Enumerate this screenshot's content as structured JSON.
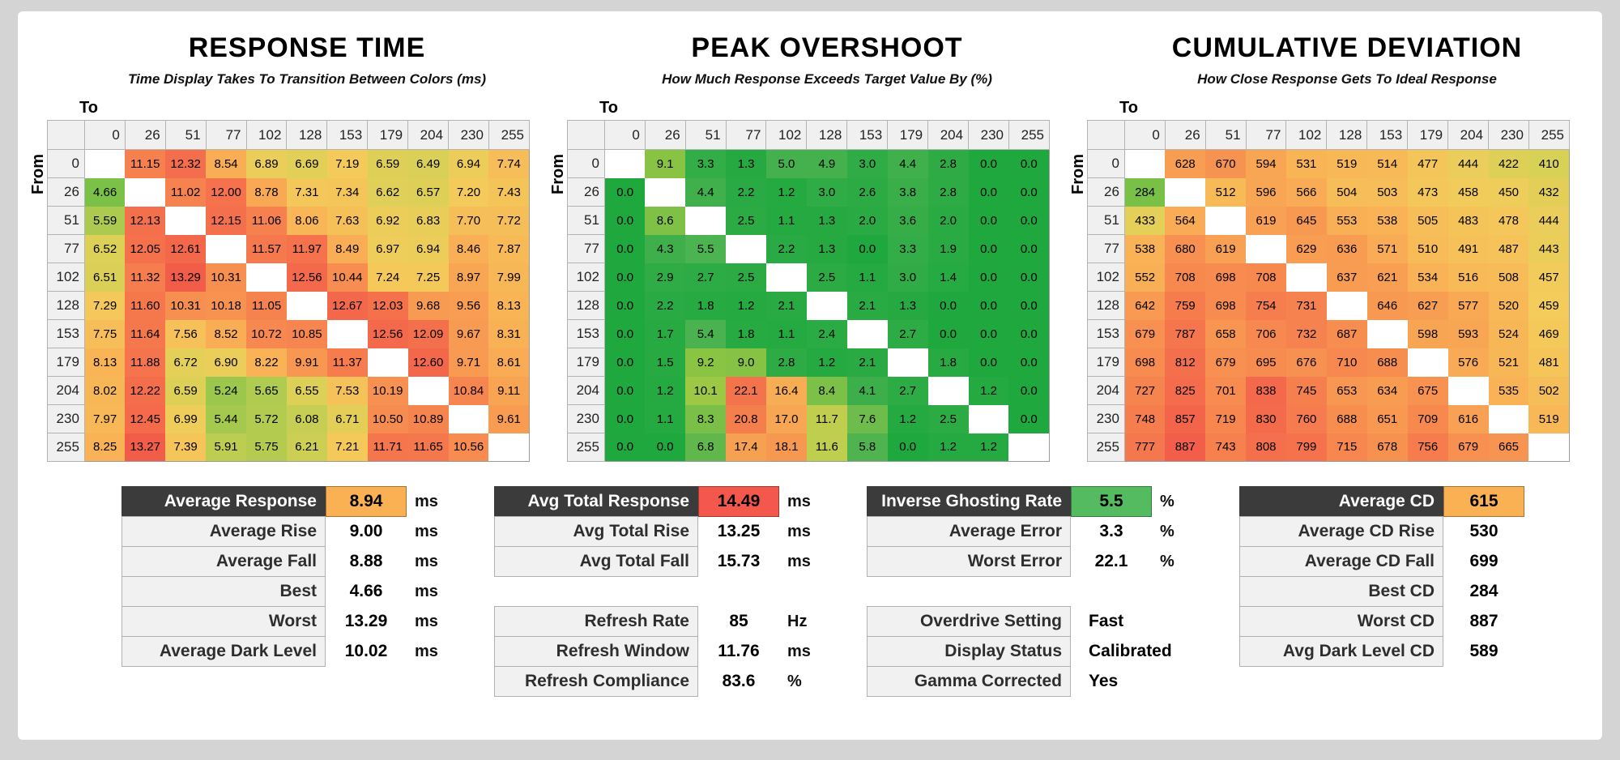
{
  "page": {
    "background": "#d4d4d4",
    "panel_background": "#ffffff"
  },
  "colors": {
    "header_dark": "#3b3b3b",
    "value_orange": "#f9b153",
    "value_red": "#f4574c",
    "value_green": "#55bb60",
    "matrix_header_bg": "#f0f0f0"
  },
  "chart_data": [
    {
      "type": "heatmap",
      "id": "response-time",
      "title": "RESPONSE TIME",
      "subtitle": "Time Display Takes To Transition Between Colors (ms)",
      "x_label": "To",
      "y_label": "From",
      "unit": "ms",
      "categories": [
        0,
        26,
        51,
        77,
        102,
        128,
        153,
        179,
        204,
        230,
        255
      ],
      "decimals": 2,
      "values": [
        [
          null,
          11.15,
          12.32,
          8.54,
          6.89,
          6.69,
          7.19,
          6.59,
          6.49,
          6.94,
          7.74
        ],
        [
          4.66,
          null,
          11.02,
          12.0,
          8.78,
          7.31,
          7.34,
          6.62,
          6.57,
          7.2,
          7.43
        ],
        [
          5.59,
          12.13,
          null,
          12.15,
          11.06,
          8.06,
          7.63,
          6.92,
          6.83,
          7.7,
          7.72
        ],
        [
          6.52,
          12.05,
          12.61,
          null,
          11.57,
          11.97,
          8.49,
          6.97,
          6.94,
          8.46,
          7.87
        ],
        [
          6.51,
          11.32,
          13.29,
          10.31,
          null,
          12.56,
          10.44,
          7.24,
          7.25,
          8.97,
          7.99
        ],
        [
          7.29,
          11.6,
          10.31,
          10.18,
          11.05,
          null,
          12.67,
          12.03,
          9.68,
          9.56,
          8.13
        ],
        [
          7.75,
          11.64,
          7.56,
          8.52,
          10.72,
          10.85,
          null,
          12.56,
          12.09,
          9.67,
          8.31
        ],
        [
          8.13,
          11.88,
          6.72,
          6.9,
          8.22,
          9.91,
          11.37,
          null,
          12.6,
          9.71,
          8.61
        ],
        [
          8.02,
          12.22,
          6.59,
          5.24,
          5.65,
          6.55,
          7.53,
          10.19,
          null,
          10.84,
          9.11
        ],
        [
          7.97,
          12.45,
          6.99,
          5.44,
          5.72,
          6.08,
          6.71,
          10.5,
          10.89,
          null,
          9.61
        ],
        [
          8.25,
          13.27,
          7.39,
          5.91,
          5.75,
          6.21,
          7.21,
          11.71,
          11.65,
          10.56,
          null
        ]
      ],
      "colormap": {
        "min": 4.4,
        "max": 13.4,
        "stops": [
          [
            0,
            "#6fbe45"
          ],
          [
            0.12,
            "#a6c94e"
          ],
          [
            0.22,
            "#d6d156"
          ],
          [
            0.3,
            "#f3cc5b"
          ],
          [
            0.42,
            "#f9b356"
          ],
          [
            0.58,
            "#f89c52"
          ],
          [
            0.76,
            "#f67e4e"
          ],
          [
            1,
            "#f25b49"
          ]
        ]
      }
    },
    {
      "type": "heatmap",
      "id": "peak-overshoot",
      "title": "PEAK OVERSHOOT",
      "subtitle": "How Much Response Exceeds Target Value By (%)",
      "x_label": "To",
      "y_label": "From",
      "unit": "%",
      "categories": [
        0,
        26,
        51,
        77,
        102,
        128,
        153,
        179,
        204,
        230,
        255
      ],
      "decimals": 1,
      "values": [
        [
          null,
          9.1,
          3.3,
          1.3,
          5.0,
          4.9,
          3.0,
          4.4,
          2.8,
          0.0,
          0.0
        ],
        [
          0.0,
          null,
          4.4,
          2.2,
          1.2,
          3.0,
          2.6,
          3.8,
          2.8,
          0.0,
          0.0
        ],
        [
          0.0,
          8.6,
          null,
          2.5,
          1.1,
          1.3,
          2.0,
          3.6,
          2.0,
          0.0,
          0.0
        ],
        [
          0.0,
          4.3,
          5.5,
          null,
          2.2,
          1.3,
          0.0,
          3.3,
          1.9,
          0.0,
          0.0
        ],
        [
          0.0,
          2.9,
          2.7,
          2.5,
          null,
          2.5,
          1.1,
          3.0,
          1.4,
          0.0,
          0.0
        ],
        [
          0.0,
          2.2,
          1.8,
          1.2,
          2.1,
          null,
          2.1,
          1.3,
          0.0,
          0.0,
          0.0
        ],
        [
          0.0,
          1.7,
          5.4,
          1.8,
          1.1,
          2.4,
          null,
          2.7,
          0.0,
          0.0,
          0.0
        ],
        [
          0.0,
          1.5,
          9.2,
          9.0,
          2.8,
          1.2,
          2.1,
          null,
          1.8,
          0.0,
          0.0
        ],
        [
          0.0,
          1.2,
          10.1,
          22.1,
          16.4,
          8.4,
          4.1,
          2.7,
          null,
          1.2,
          0.0
        ],
        [
          0.0,
          1.1,
          8.3,
          20.8,
          17.0,
          11.7,
          7.6,
          1.2,
          2.5,
          null,
          0.0
        ],
        [
          0.0,
          0.0,
          6.8,
          17.4,
          18.1,
          11.6,
          5.8,
          0.0,
          1.2,
          1.2,
          null
        ]
      ],
      "colormap": {
        "min": 0,
        "max": 22.5,
        "stops": [
          [
            0,
            "#1fa83e"
          ],
          [
            0.12,
            "#2dab45"
          ],
          [
            0.25,
            "#4cb350"
          ],
          [
            0.35,
            "#73bd4a"
          ],
          [
            0.42,
            "#8ec542"
          ],
          [
            0.52,
            "#c0ce50"
          ],
          [
            0.62,
            "#e8d457"
          ],
          [
            0.72,
            "#f7b055"
          ],
          [
            0.82,
            "#f6934f"
          ],
          [
            1,
            "#f2704c"
          ]
        ]
      }
    },
    {
      "type": "heatmap",
      "id": "cumulative-deviation",
      "title": "CUMULATIVE DEVIATION",
      "subtitle": "How Close Response Gets To Ideal Response",
      "x_label": "To",
      "y_label": "From",
      "unit": "",
      "categories": [
        0,
        26,
        51,
        77,
        102,
        128,
        153,
        179,
        204,
        230,
        255
      ],
      "decimals": 0,
      "values": [
        [
          null,
          628,
          670,
          594,
          531,
          519,
          514,
          477,
          444,
          422,
          410
        ],
        [
          284,
          null,
          512,
          596,
          566,
          504,
          503,
          473,
          458,
          450,
          432
        ],
        [
          433,
          564,
          null,
          619,
          645,
          553,
          538,
          505,
          483,
          478,
          444
        ],
        [
          538,
          680,
          619,
          null,
          629,
          636,
          571,
          510,
          491,
          487,
          443
        ],
        [
          552,
          708,
          698,
          708,
          null,
          637,
          621,
          534,
          516,
          508,
          457
        ],
        [
          642,
          759,
          698,
          754,
          731,
          null,
          646,
          627,
          577,
          520,
          459
        ],
        [
          679,
          787,
          658,
          706,
          732,
          687,
          null,
          598,
          593,
          524,
          469
        ],
        [
          698,
          812,
          679,
          695,
          676,
          710,
          688,
          null,
          576,
          521,
          481
        ],
        [
          727,
          825,
          701,
          838,
          745,
          653,
          634,
          675,
          null,
          535,
          502
        ],
        [
          748,
          857,
          719,
          830,
          760,
          688,
          651,
          709,
          616,
          null,
          519
        ],
        [
          777,
          887,
          743,
          808,
          799,
          715,
          678,
          756,
          679,
          665,
          null
        ]
      ],
      "colormap": {
        "min": 270,
        "max": 900,
        "stops": [
          [
            0,
            "#6fbe45"
          ],
          [
            0.12,
            "#a6c94e"
          ],
          [
            0.22,
            "#d6d156"
          ],
          [
            0.3,
            "#f3cc5b"
          ],
          [
            0.42,
            "#f9b356"
          ],
          [
            0.58,
            "#f89c52"
          ],
          [
            0.76,
            "#f67e4e"
          ],
          [
            1,
            "#f25b49"
          ]
        ]
      }
    }
  ],
  "summary_tables": [
    {
      "id": "response-summary",
      "groups": [
        [
          {
            "label": "Average Response",
            "value": "8.94",
            "unit": "ms",
            "header": true,
            "value_bg": "#f9b153"
          },
          {
            "label": "Average Rise",
            "value": "9.00",
            "unit": "ms"
          },
          {
            "label": "Average Fall",
            "value": "8.88",
            "unit": "ms"
          },
          {
            "label": "Best",
            "value": "4.66",
            "unit": "ms"
          },
          {
            "label": "Worst",
            "value": "13.29",
            "unit": "ms"
          },
          {
            "label": "Average Dark Level",
            "value": "10.02",
            "unit": "ms"
          }
        ]
      ]
    },
    {
      "id": "total-response-summary",
      "groups": [
        [
          {
            "label": "Avg Total Response",
            "value": "14.49",
            "unit": "ms",
            "header": true,
            "value_bg": "#f4574c"
          },
          {
            "label": "Avg Total Rise",
            "value": "13.25",
            "unit": "ms"
          },
          {
            "label": "Avg Total Fall",
            "value": "15.73",
            "unit": "ms"
          }
        ],
        [
          {
            "label": "Refresh Rate",
            "value": "85",
            "unit": "Hz"
          },
          {
            "label": "Refresh Window",
            "value": "11.76",
            "unit": "ms"
          },
          {
            "label": "Refresh Compliance",
            "value": "83.6",
            "unit": "%"
          }
        ]
      ]
    },
    {
      "id": "overshoot-summary",
      "groups": [
        [
          {
            "label": "Inverse Ghosting Rate",
            "value": "5.5",
            "unit": "%",
            "header": true,
            "value_bg": "#55bb60"
          },
          {
            "label": "Average Error",
            "value": "3.3",
            "unit": "%"
          },
          {
            "label": "Worst Error",
            "value": "22.1",
            "unit": "%"
          }
        ],
        [
          {
            "label": "Overdrive Setting",
            "value": "Fast",
            "align": "left"
          },
          {
            "label": "Display Status",
            "value": "Calibrated",
            "align": "left"
          },
          {
            "label": "Gamma Corrected",
            "value": "Yes",
            "align": "left"
          }
        ]
      ]
    },
    {
      "id": "cd-summary",
      "groups": [
        [
          {
            "label": "Average CD",
            "value": "615",
            "header": true,
            "value_bg": "#f9b153"
          },
          {
            "label": "Average CD Rise",
            "value": "530"
          },
          {
            "label": "Average CD Fall",
            "value": "699"
          },
          {
            "label": "Best CD",
            "value": "284"
          },
          {
            "label": "Worst CD",
            "value": "887"
          },
          {
            "label": "Avg Dark Level CD",
            "value": "589"
          }
        ]
      ]
    }
  ]
}
